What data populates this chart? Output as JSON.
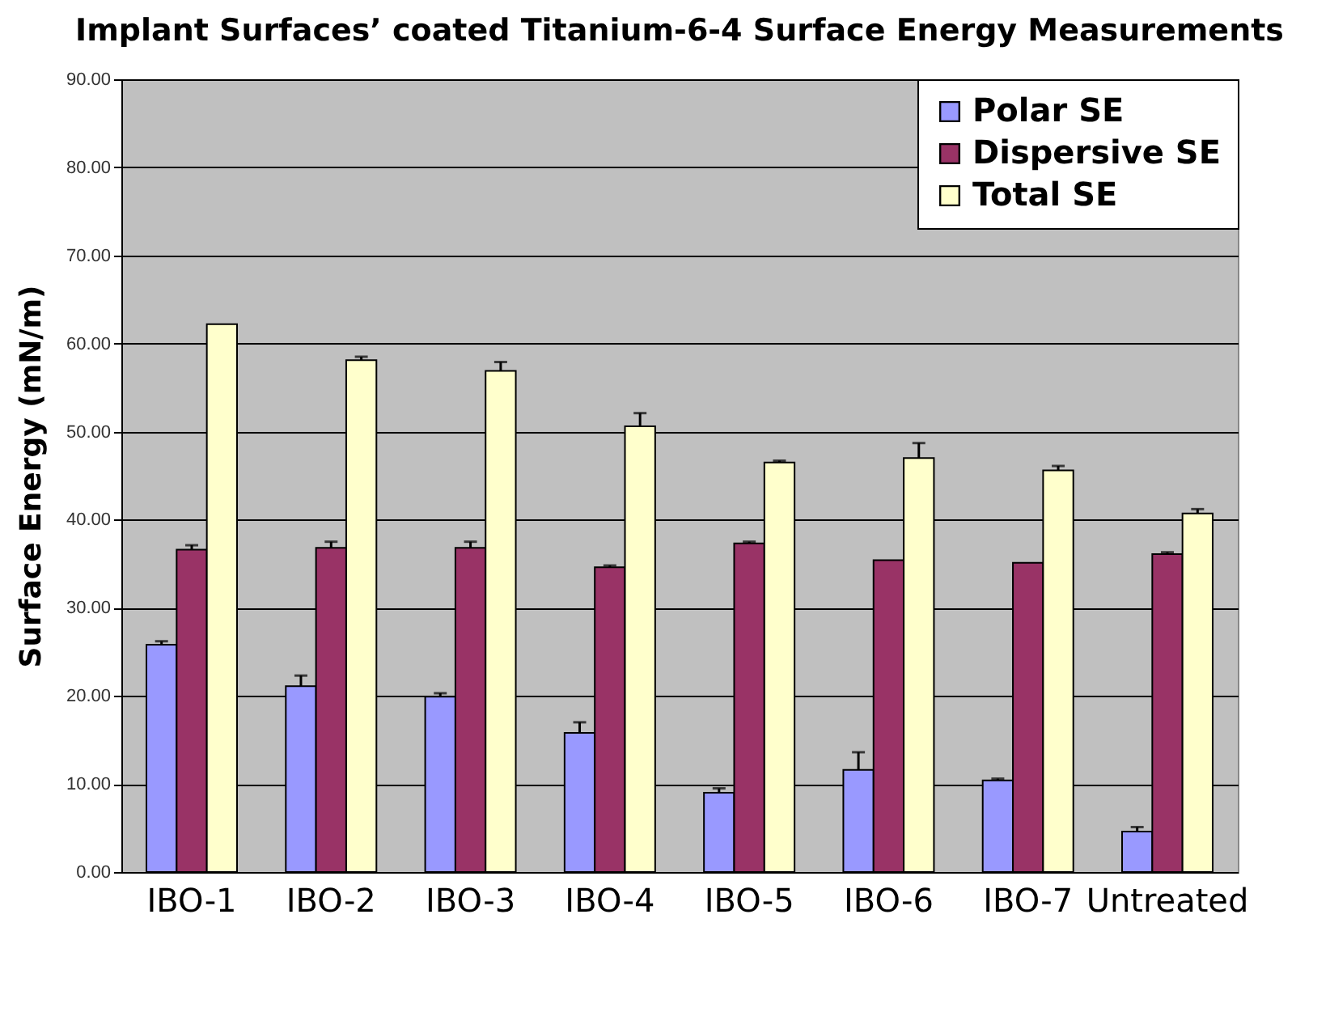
{
  "chart_data": {
    "type": "bar",
    "title": "Implant Surfaces’ coated Titanium-6-4 Surface Energy Measurements",
    "ylabel": "Surface Energy (mN/m)",
    "categories": [
      "IBO-1",
      "IBO-2",
      "IBO-3",
      "IBO-4",
      "IBO-5",
      "IBO-6",
      "IBO-7",
      "Untreated"
    ],
    "series": [
      {
        "name": "Polar SE",
        "color": "#9999ff",
        "values": [
          25.8,
          21.1,
          19.9,
          15.8,
          9.0,
          11.6,
          10.4,
          4.6
        ],
        "errors": [
          [
            25.8,
            26.2
          ],
          [
            21.1,
            22.3
          ],
          [
            19.9,
            20.3
          ],
          [
            15.8,
            17.0
          ],
          [
            9.0,
            9.5
          ],
          [
            11.6,
            13.6
          ],
          [
            10.4,
            10.6
          ],
          [
            4.6,
            5.1
          ]
        ]
      },
      {
        "name": "Dispersive SE",
        "color": "#993366",
        "values": [
          36.6,
          36.8,
          36.8,
          34.6,
          37.3,
          35.4,
          35.1,
          36.1
        ],
        "errors": [
          [
            36.6,
            37.1
          ],
          [
            36.8,
            37.5
          ],
          [
            36.8,
            37.5
          ],
          [
            34.6,
            34.8
          ],
          [
            37.3,
            37.5
          ],
          null,
          null,
          [
            36.1,
            36.3
          ]
        ]
      },
      {
        "name": "Total SE",
        "color": "#ffffcc",
        "values": [
          62.2,
          58.1,
          56.9,
          50.6,
          46.5,
          47.0,
          45.6,
          40.7
        ],
        "errors": [
          null,
          [
            58.1,
            58.5
          ],
          [
            56.9,
            57.9
          ],
          [
            50.6,
            52.1
          ],
          [
            46.5,
            46.7
          ],
          [
            47.0,
            48.7
          ],
          [
            45.6,
            46.1
          ],
          [
            40.7,
            41.2
          ]
        ]
      }
    ],
    "ylim": [
      0,
      90
    ],
    "yticks": [
      {
        "value": 0,
        "label": "0.00"
      },
      {
        "value": 10,
        "label": "10.00"
      },
      {
        "value": 20,
        "label": "20.00"
      },
      {
        "value": 30,
        "label": "30.00"
      },
      {
        "value": 40,
        "label": "40.00"
      },
      {
        "value": 50,
        "label": "50.00"
      },
      {
        "value": 60,
        "label": "60.00"
      },
      {
        "value": 70,
        "label": "70.00"
      },
      {
        "value": 80,
        "label": "80.00"
      },
      {
        "value": 90,
        "label": "90.00"
      }
    ],
    "grid": "y",
    "legend": "top right"
  }
}
